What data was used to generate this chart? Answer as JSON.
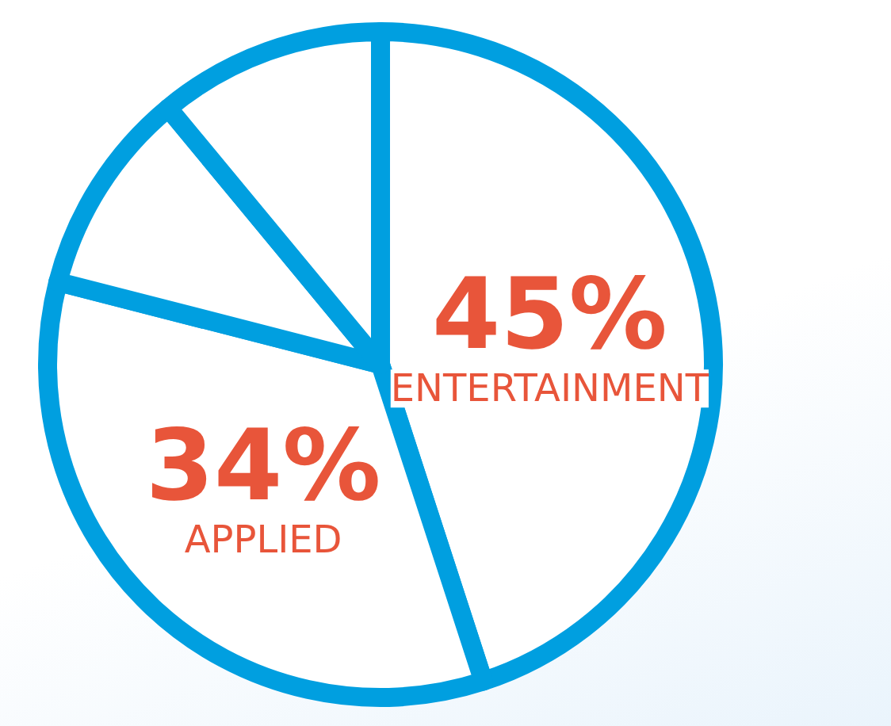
{
  "chart_data": {
    "type": "pie",
    "categories": [
      "ENTERTAINMENT",
      "APPLIED",
      null,
      null
    ],
    "values": [
      45,
      34,
      10,
      11
    ],
    "colors": [
      "#ffffff",
      "#ffffff",
      "#ffffff",
      "#ffffff"
    ],
    "value_labels": [
      "45%",
      "34%",
      null,
      null
    ]
  }
}
